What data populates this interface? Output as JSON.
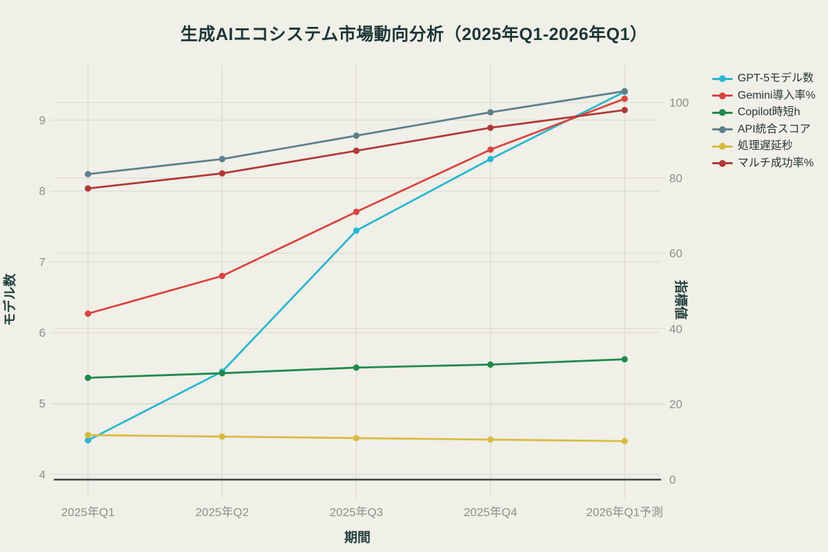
{
  "chart_data": {
    "type": "line",
    "title": "生成AIエコシステム市場動向分析（2025年Q1-2026年Q1）",
    "xlabel": "期間",
    "ylabel_left": "モデル数",
    "ylabel_right": "指標値",
    "categories": [
      "2025年Q1",
      "2025年Q2",
      "2025年Q3",
      "2025年Q4",
      "2026年Q1予測"
    ],
    "left_axis": {
      "ticks": [
        4,
        5,
        6,
        7,
        8,
        9
      ],
      "domain": [
        3.78,
        9.77
      ]
    },
    "right_axis": {
      "ticks": [
        0,
        20,
        40,
        60,
        80,
        100
      ],
      "domain": [
        -2.74,
        109.8
      ]
    },
    "series": [
      {
        "name": "GPT-5モデル数",
        "axis": "left",
        "color": "#29b7ce",
        "values": [
          4.48,
          5.45,
          7.44,
          8.45,
          9.4
        ]
      },
      {
        "name": "Gemini導入率%",
        "axis": "right",
        "color": "#d8453f",
        "values": [
          44,
          54,
          71,
          87.5,
          101
        ]
      },
      {
        "name": "Copilot時短h",
        "axis": "right",
        "color": "#1e8a4b",
        "values": [
          27,
          28.2,
          29.7,
          30.5,
          31.9
        ]
      },
      {
        "name": "API統合スコア",
        "axis": "right",
        "color": "#5d808d",
        "values": [
          81,
          85,
          91.2,
          97.4,
          103
        ]
      },
      {
        "name": "処理遅延秒",
        "axis": "right",
        "color": "#d8bc42",
        "values": [
          11.8,
          11.4,
          11.0,
          10.6,
          10.2
        ]
      },
      {
        "name": "マルチ成功率%",
        "axis": "right",
        "color": "#b03936",
        "values": [
          77.2,
          81.2,
          87.2,
          93.3,
          98
        ]
      }
    ],
    "legend_position": "right",
    "grid": true,
    "colors": {
      "background": "#f0efe8",
      "grid": "#dddbd2",
      "zeroline": "#454545",
      "tick_label": "#8f8e88",
      "axis_title": "#24403d",
      "title": "#1d3636",
      "legend_text": "#273636"
    }
  }
}
